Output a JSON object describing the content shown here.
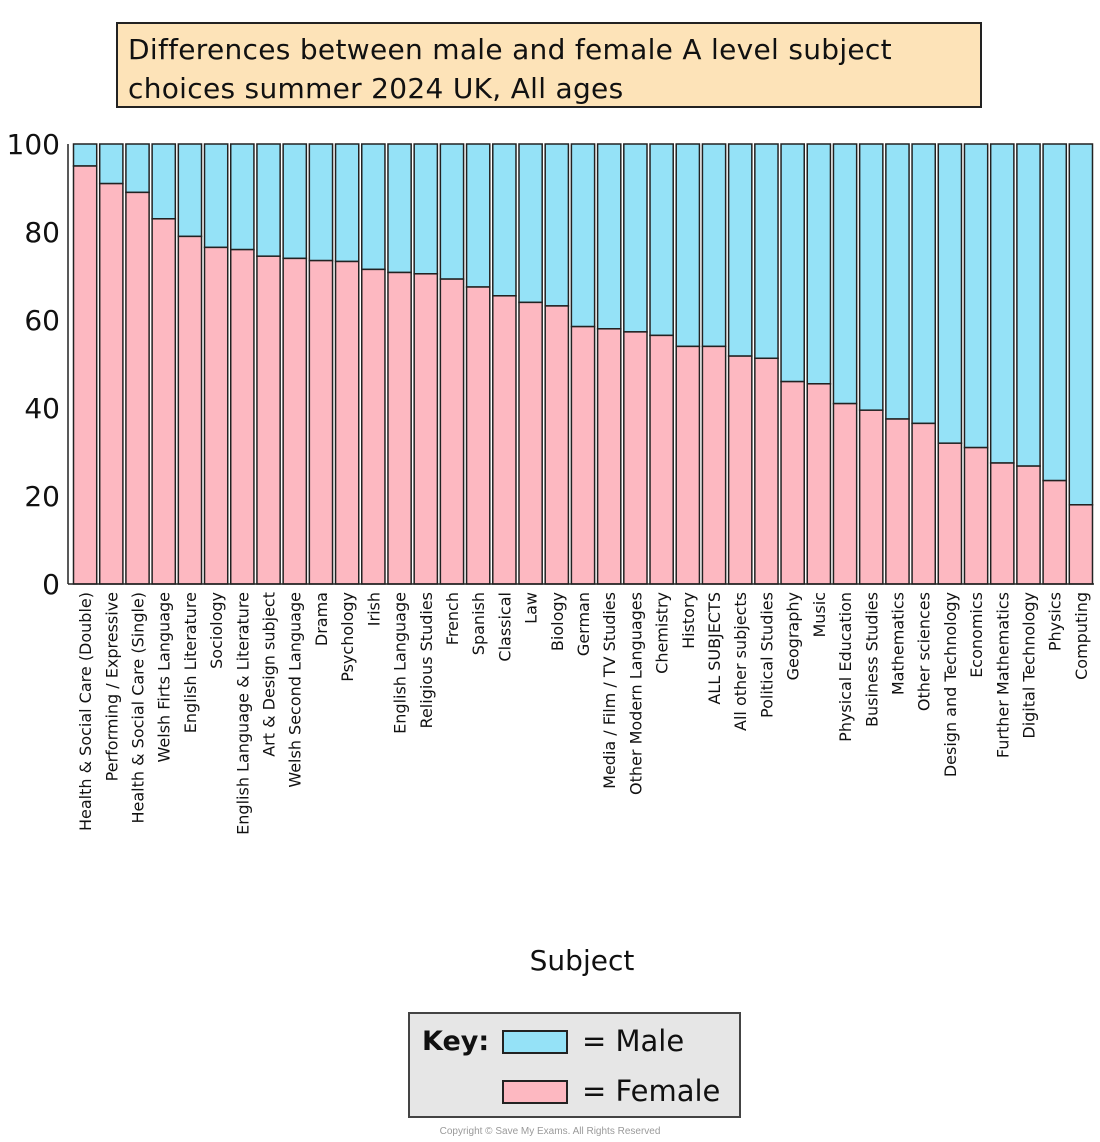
{
  "title": {
    "line1": "Differences between male and female A level subject",
    "line2": "choices summer 2024 UK, All ages"
  },
  "colors": {
    "male": "#95e2f7",
    "female": "#fdb8c1",
    "title_bg": "#fde3b8",
    "key_bg": "#e6e6e6"
  },
  "key": {
    "label": "Key:",
    "male": "= Male",
    "female": "= Female"
  },
  "copyright": "Copyright © Save My Exams. All Rights Reserved",
  "chart_data": {
    "type": "bar",
    "stacked": true,
    "title": "Differences between male and female A level subject choices summer 2024 UK, All ages",
    "xlabel": "Subject",
    "ylabel": "",
    "ylim": [
      0,
      100
    ],
    "yticks": [
      0,
      20,
      40,
      60,
      80,
      100
    ],
    "grid": false,
    "legend": "bottom-center",
    "categories": [
      "Health & Social Care (Double)",
      "Performing / Expressive",
      "Health & Social Care (Single)",
      "Welsh Firts Language",
      "English Literature",
      "Sociology",
      "English Language & Literature",
      "Art & Design subject",
      "Welsh Second Language",
      "Drama",
      "Psychology",
      "Irish",
      "English Language",
      "Religious Studies",
      "French",
      "Spanish",
      "Classical",
      "Law",
      "Biology",
      "German",
      "Media / Film / TV Studies",
      "Other Modern Languages",
      "Chemistry",
      "History",
      "ALL SUBJECTS",
      "All other subjects",
      "Political Studies",
      "Geography",
      "Music",
      "Physical Education",
      "Business Studies",
      "Mathematics",
      "Other sciences",
      "Design and Technology",
      "Economics",
      "Further Mathematics",
      "Digital Technology",
      "Physics",
      "Computing"
    ],
    "series": [
      {
        "name": "Female",
        "values": [
          95,
          91,
          89,
          83,
          79,
          76.5,
          76,
          74.5,
          74,
          73.5,
          73.3,
          71.5,
          70.8,
          70.5,
          69.3,
          67.5,
          65.5,
          64,
          63.2,
          58.5,
          58,
          57.3,
          56.5,
          54,
          54,
          51.8,
          51.3,
          46,
          45.5,
          41,
          39.5,
          37.5,
          36.5,
          32,
          31,
          27.5,
          26.8,
          23.5,
          18
        ]
      },
      {
        "name": "Male",
        "values": [
          5,
          9,
          11,
          17,
          21,
          23.5,
          24,
          25.5,
          26,
          26.5,
          26.7,
          28.5,
          29.2,
          29.5,
          30.7,
          32.5,
          34.5,
          36,
          36.8,
          41.5,
          42,
          42.7,
          43.5,
          46,
          46,
          48.2,
          48.7,
          54,
          54.5,
          59,
          60.5,
          62.5,
          63.5,
          68,
          69,
          72.5,
          73.2,
          76.5,
          82
        ]
      }
    ]
  }
}
